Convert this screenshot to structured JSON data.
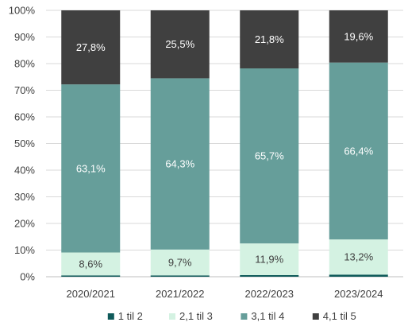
{
  "chart_data": {
    "type": "bar",
    "stacked": true,
    "title": "",
    "xlabel": "",
    "ylabel": "",
    "ylim": [
      0,
      100
    ],
    "y_ticks": [
      "0%",
      "10%",
      "20%",
      "30%",
      "40%",
      "50%",
      "60%",
      "70%",
      "80%",
      "90%",
      "100%"
    ],
    "grid": true,
    "legend_position": "bottom",
    "categories": [
      "2020/2021",
      "2021/2022",
      "2022/2023",
      "2023/2024"
    ],
    "series": [
      {
        "name": "1 til 2",
        "color": "#0f5a5a",
        "values": [
          0.5,
          0.5,
          0.6,
          0.8
        ],
        "labels": [
          "",
          "",
          "",
          ""
        ],
        "label_color": "#ffffff"
      },
      {
        "name": "2,1 til 3",
        "color": "#d4f2e2",
        "values": [
          8.6,
          9.7,
          11.9,
          13.2
        ],
        "labels": [
          "8,6%",
          "9,7%",
          "11,9%",
          "13,2%"
        ],
        "label_color": "#404040"
      },
      {
        "name": "3,1 til 4",
        "color": "#669e9a",
        "values": [
          63.1,
          64.3,
          65.7,
          66.4
        ],
        "labels": [
          "63,1%",
          "64,3%",
          "65,7%",
          "66,4%"
        ],
        "label_color": "#ffffff"
      },
      {
        "name": "4,1 til 5",
        "color": "#404040",
        "values": [
          27.8,
          25.5,
          21.8,
          19.6
        ],
        "labels": [
          "27,8%",
          "25,5%",
          "21,8%",
          "19,6%"
        ],
        "label_color": "#ffffff"
      }
    ]
  }
}
